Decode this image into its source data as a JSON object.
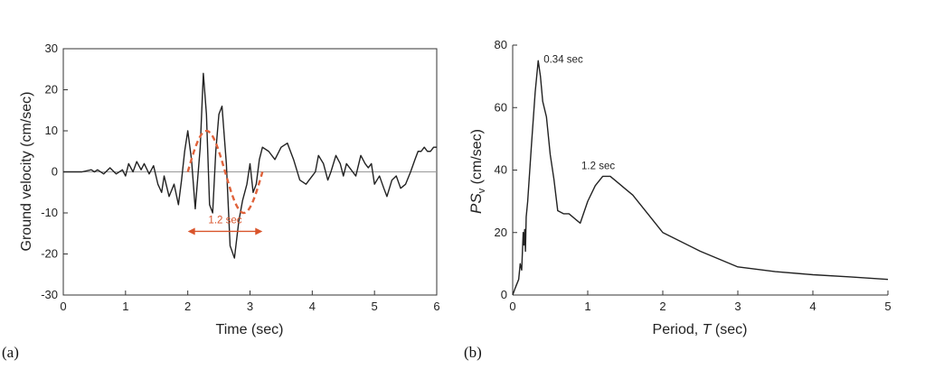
{
  "panels": {
    "a_label": "(a)",
    "b_label": "(b)"
  },
  "chart_data": [
    {
      "type": "line",
      "xlabel": "Time (sec)",
      "ylabel": "Ground velocity (cm/sec)",
      "xlim": [
        0,
        6
      ],
      "ylim": [
        -30,
        30
      ],
      "xticks": [
        0,
        1,
        2,
        3,
        4,
        5,
        6
      ],
      "yticks": [
        -30,
        -20,
        -10,
        0,
        10,
        20,
        30
      ],
      "xtick_labels": [
        "0",
        "1",
        "2",
        "3",
        "4",
        "5",
        "6"
      ],
      "ytick_labels": [
        "-30",
        "-20",
        "-10",
        "0",
        "10",
        "20",
        "30"
      ],
      "zero_line": true,
      "series": [
        {
          "color": "#222222",
          "style": "solid",
          "x": [
            0,
            0.3,
            0.45,
            0.5,
            0.55,
            0.65,
            0.75,
            0.85,
            0.95,
            1.0,
            1.05,
            1.12,
            1.18,
            1.25,
            1.3,
            1.38,
            1.45,
            1.52,
            1.58,
            1.62,
            1.7,
            1.78,
            1.85,
            1.9,
            1.95,
            2.0,
            2.06,
            2.12,
            2.2,
            2.25,
            2.3,
            2.35,
            2.4,
            2.45,
            2.5,
            2.55,
            2.62,
            2.68,
            2.75,
            2.82,
            2.88,
            2.95,
            3.0,
            3.05,
            3.1,
            3.15,
            3.2,
            3.3,
            3.4,
            3.5,
            3.6,
            3.7,
            3.8,
            3.9,
            3.95,
            4.0,
            4.05,
            4.1,
            4.18,
            4.25,
            4.3,
            4.38,
            4.45,
            4.5,
            4.55,
            4.6,
            4.7,
            4.78,
            4.85,
            4.9,
            4.95,
            5.0,
            5.08,
            5.15,
            5.2,
            5.28,
            5.35,
            5.42,
            5.5,
            5.58,
            5.65,
            5.7,
            5.75,
            5.8,
            5.85,
            5.9,
            5.95,
            6.0
          ],
          "y": [
            0,
            0,
            0.5,
            0,
            0.5,
            -0.5,
            1,
            -0.5,
            0.5,
            -1,
            2,
            0,
            2.5,
            0.5,
            2,
            -0.5,
            1.5,
            -3,
            -5,
            -1,
            -6,
            -3,
            -8,
            -2,
            5,
            10,
            3,
            -9,
            6,
            24,
            14,
            -8,
            -10,
            5,
            14,
            16,
            2,
            -18,
            -21,
            -12,
            -7,
            -3,
            2,
            -5,
            -3,
            3,
            6,
            5,
            3,
            6,
            7,
            3,
            -2,
            -3,
            -2,
            -1,
            0,
            4,
            2,
            -2,
            0,
            4,
            2,
            -1,
            2,
            1,
            -1,
            4,
            2,
            1,
            2,
            -3,
            -1,
            -4,
            -6,
            -2,
            -1,
            -4,
            -3,
            0,
            3,
            5,
            5,
            6,
            5,
            5,
            6,
            6
          ]
        },
        {
          "color": "#e0623a",
          "style": "dashed",
          "x": [
            2.0,
            2.3,
            2.6,
            2.9,
            3.2
          ],
          "y": [
            0,
            10,
            0,
            -10,
            0
          ]
        }
      ],
      "annotations": [
        {
          "text": "1.2 sec",
          "x": 2.6,
          "y": -12.5,
          "color": "#d9542b"
        }
      ],
      "arrow": {
        "x_start": 2.0,
        "x_end": 3.2,
        "y": -14.5,
        "color": "#d9542b"
      }
    },
    {
      "type": "line",
      "xlabel": "Period, T (sec)",
      "ylabel_main": "PS",
      "ylabel_sub": "v",
      "ylabel_rest": " (cm/sec)",
      "xlabel_main": "Period, ",
      "xlabel_italic": "T",
      "xlabel_rest": " (sec)",
      "xlim": [
        0,
        5
      ],
      "ylim": [
        0,
        80
      ],
      "xticks": [
        0,
        1,
        2,
        3,
        4,
        5
      ],
      "yticks": [
        0,
        20,
        40,
        60,
        80
      ],
      "xtick_labels": [
        "0",
        "1",
        "2",
        "3",
        "4",
        "5"
      ],
      "ytick_labels": [
        "0",
        "20",
        "40",
        "60",
        "80"
      ],
      "series": [
        {
          "color": "#222222",
          "style": "solid",
          "x": [
            0,
            0.03,
            0.08,
            0.1,
            0.12,
            0.14,
            0.15,
            0.16,
            0.17,
            0.18,
            0.2,
            0.25,
            0.3,
            0.34,
            0.37,
            0.4,
            0.45,
            0.5,
            0.55,
            0.6,
            0.68,
            0.75,
            0.8,
            0.85,
            0.9,
            1.0,
            1.1,
            1.2,
            1.3,
            1.4,
            1.5,
            1.6,
            1.8,
            2.0,
            2.5,
            3.0,
            3.5,
            4.0,
            4.5,
            5.0
          ],
          "y": [
            0,
            2,
            5,
            10,
            8,
            20,
            16,
            21,
            14,
            25,
            30,
            48,
            65,
            75,
            70,
            62,
            57,
            45,
            37,
            27,
            26,
            26,
            25,
            24,
            23,
            30,
            35,
            38,
            38,
            36,
            34,
            32,
            26,
            20,
            14,
            9,
            7.5,
            6.5,
            5.8,
            5
          ],
          "annotations": [
            {
              "text": "0.34 sec",
              "x": 0.34,
              "y": 75
            },
            {
              "text": "1.2 sec",
              "x": 1.32,
              "y": 38
            }
          ]
        }
      ]
    }
  ]
}
